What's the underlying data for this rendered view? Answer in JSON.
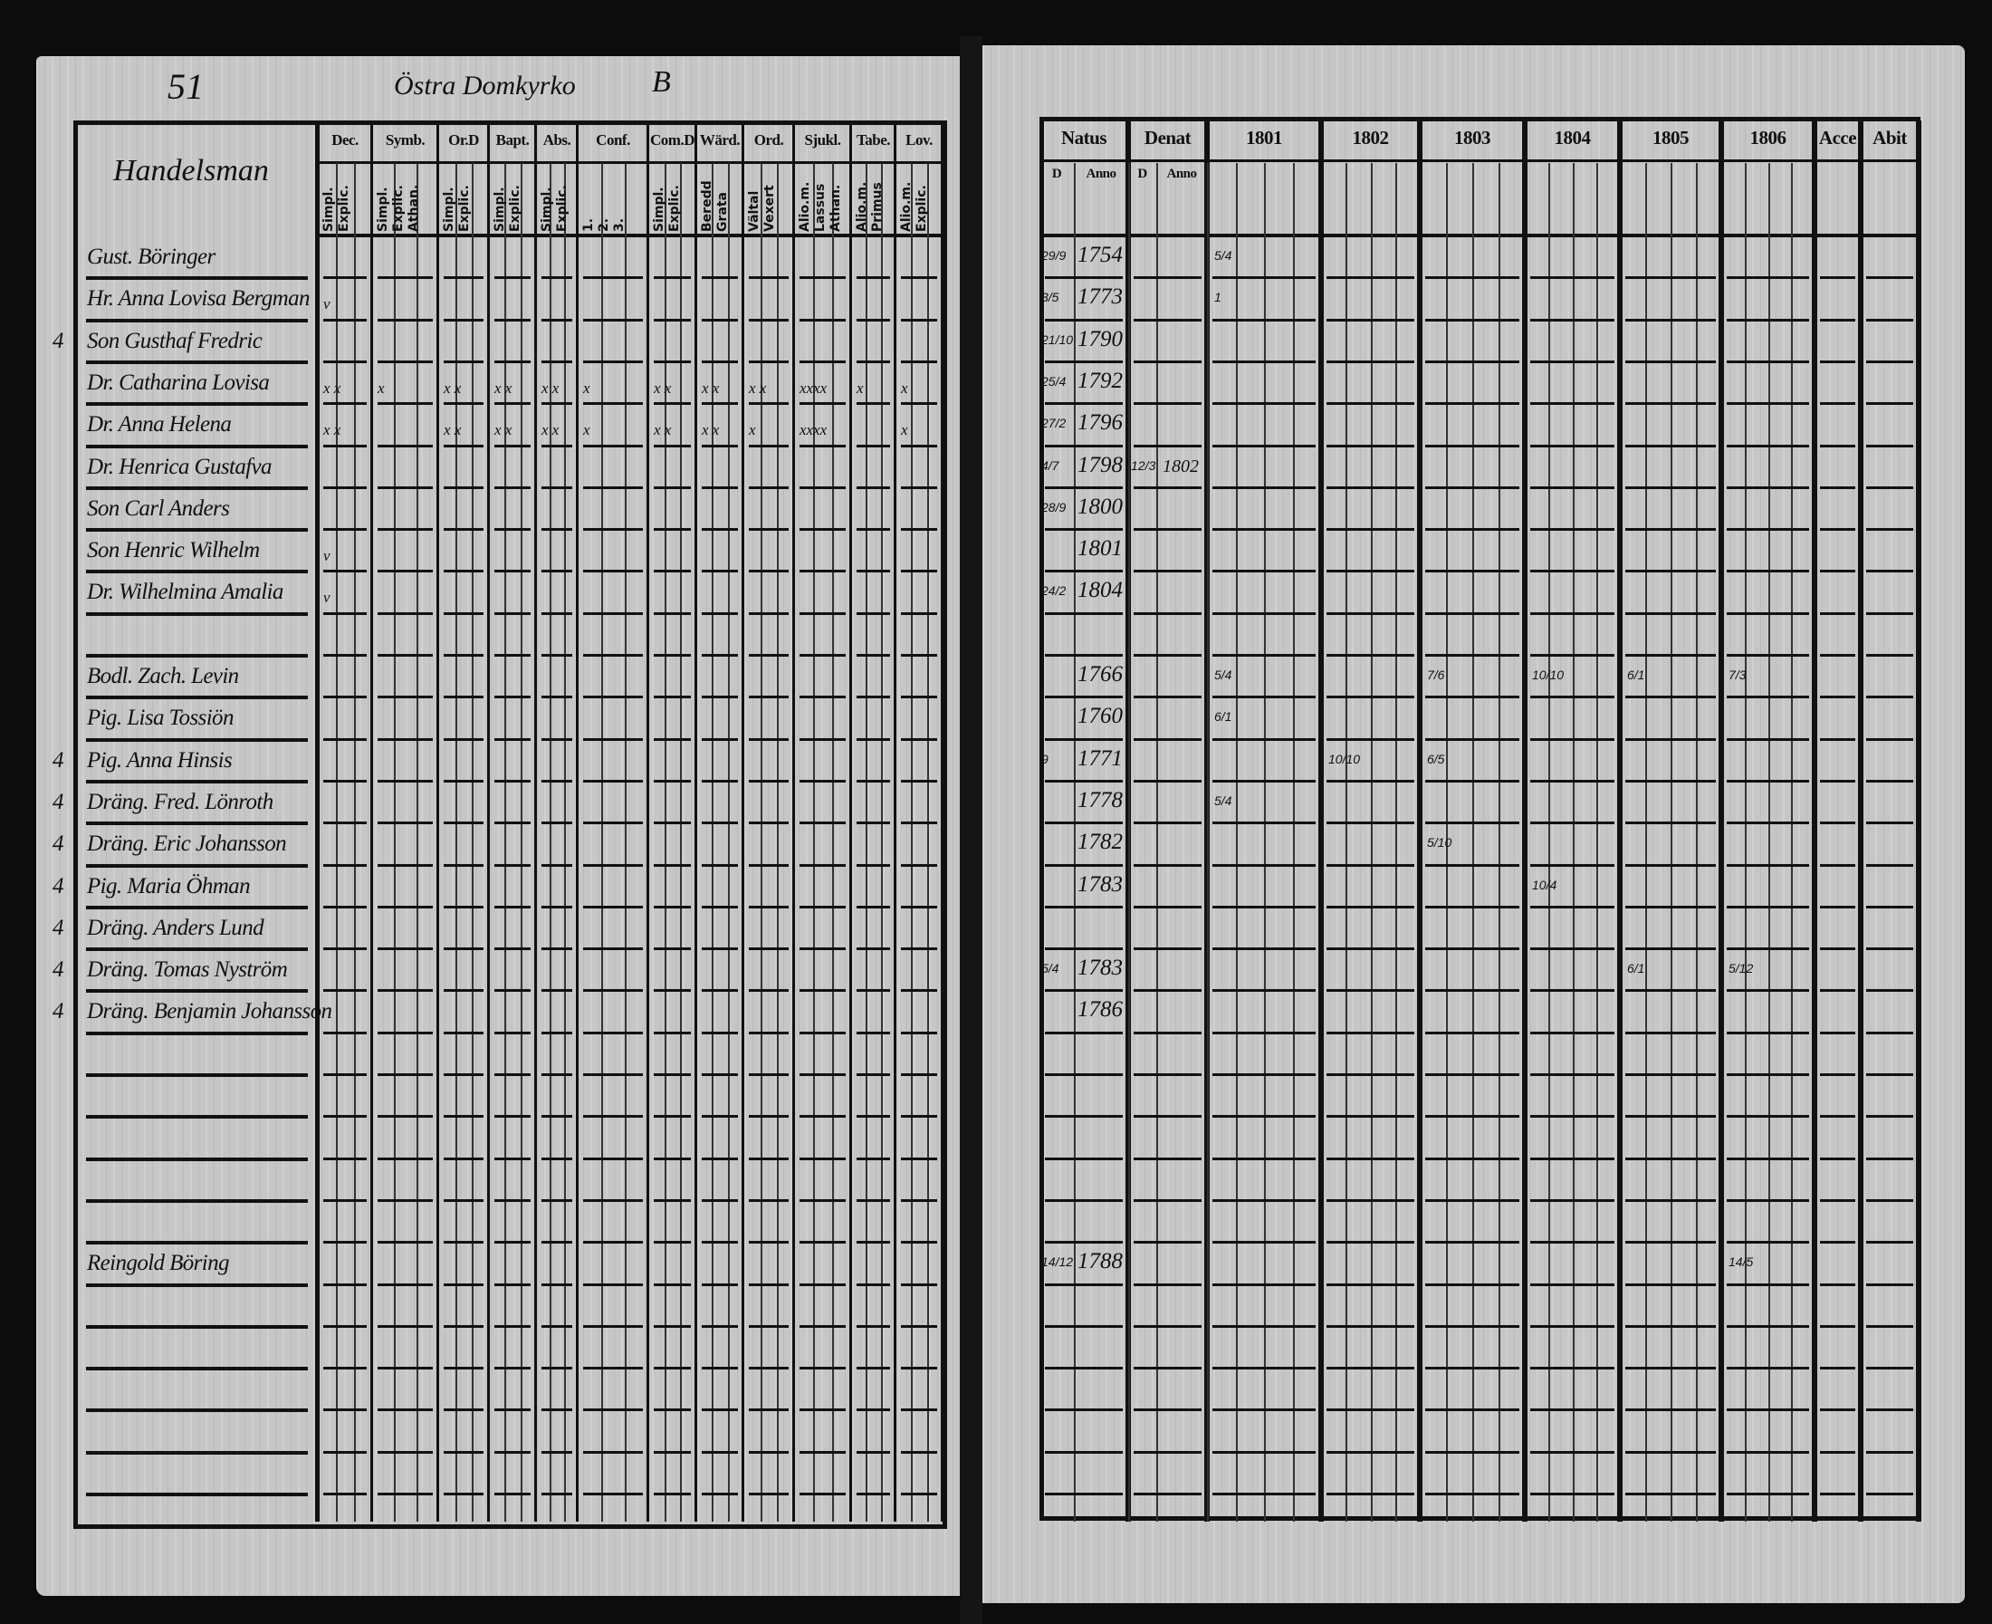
{
  "header": {
    "page_number": "51",
    "parish": "Östra Domkyrko",
    "quarter_mark": "B"
  },
  "left_table": {
    "name_header": "Handelsman",
    "columns": [
      {
        "top": "Dec.",
        "sub": "Simpl.\nExplic."
      },
      {
        "top": "Symb.",
        "sub": "Simpl.\nExplic.\nAthan."
      },
      {
        "top": "Or.D",
        "sub": "Simpl.\nExplic."
      },
      {
        "top": "Bapt.",
        "sub": "Simpl.\nExplic."
      },
      {
        "top": "Abs.",
        "sub": "Simpl.\nExplic."
      },
      {
        "top": "Conf.",
        "sub": "1.\n2.\n3."
      },
      {
        "top": "Com.D",
        "sub": "Simpl.\nExplic."
      },
      {
        "top": "Wärd.",
        "sub": "Beredd\nGrata"
      },
      {
        "top": "Ord.",
        "sub": "Vältal\nVexert"
      },
      {
        "top": "Sjukl.",
        "sub": "Alio.m.\nLassus\nAthan."
      },
      {
        "top": "Tabe.",
        "sub": "Alio.m.\nPrimus"
      },
      {
        "top": "Lov.",
        "sub": "Alio.m.\nExplic."
      }
    ],
    "rows": [
      {
        "row": 0,
        "name": "Gust. Böringer",
        "margin": "",
        "marks": []
      },
      {
        "row": 1,
        "name": "Hr. Anna Lovisa Bergman",
        "margin": "",
        "marks": [
          "v"
        ]
      },
      {
        "row": 2,
        "name": "Son Gusthaf Fredric",
        "margin": "4",
        "marks": []
      },
      {
        "row": 3,
        "name": "Dr. Catharina Lovisa",
        "margin": "",
        "marks": [
          "x x",
          "x",
          "x x",
          "x x",
          "x x",
          "x",
          "x x",
          "x x",
          "x x",
          "xxxx",
          "x",
          "x"
        ]
      },
      {
        "row": 4,
        "name": "Dr. Anna Helena",
        "margin": "",
        "marks": [
          "x x",
          "",
          "x x",
          "x x",
          "x x",
          "x",
          "x x",
          "x x",
          "x",
          "xxxx",
          "",
          "x"
        ]
      },
      {
        "row": 5,
        "name": "Dr. Henrica Gustafva",
        "margin": "",
        "marks": []
      },
      {
        "row": 6,
        "name": "Son Carl Anders",
        "margin": "",
        "marks": []
      },
      {
        "row": 7,
        "name": "Son Henric Wilhelm",
        "margin": "",
        "marks": [
          "v"
        ]
      },
      {
        "row": 8,
        "name": "Dr. Wilhelmina Amalia",
        "margin": "",
        "marks": [
          "v"
        ]
      },
      {
        "row": 10,
        "name": "Bodl. Zach. Levin",
        "margin": "",
        "marks": []
      },
      {
        "row": 11,
        "name": "Pig. Lisa Tossiön",
        "margin": "",
        "marks": []
      },
      {
        "row": 12,
        "name": "Pig. Anna Hinsis",
        "margin": "4",
        "marks": []
      },
      {
        "row": 13,
        "name": "Dräng. Fred. Lönroth",
        "margin": "4",
        "marks": []
      },
      {
        "row": 14,
        "name": "Dräng. Eric Johansson",
        "margin": "4",
        "marks": []
      },
      {
        "row": 15,
        "name": "Pig. Maria Öhman",
        "margin": "4",
        "marks": []
      },
      {
        "row": 16,
        "name": "Dräng. Anders Lund",
        "margin": "4",
        "marks": []
      },
      {
        "row": 17,
        "name": "Dräng. Tomas Nyström",
        "margin": "4",
        "marks": []
      },
      {
        "row": 18,
        "name": "Dräng. Benjamin Johansson",
        "margin": "4",
        "marks": []
      },
      {
        "row": 24,
        "name": "Reingold Böring",
        "margin": "",
        "marks": []
      }
    ]
  },
  "right_table": {
    "group_headers": [
      "Natus",
      "Denat",
      "1801",
      "1802",
      "1803",
      "1804",
      "1805",
      "1806",
      "Acce",
      "Abit"
    ],
    "sub_headers": {
      "natus_day": "D",
      "natus_year": "Anno",
      "denat_day": "D",
      "denat_year": "Anno"
    },
    "rows": [
      {
        "row": 0,
        "born_day": "29/9",
        "born_year": "1754",
        "death_day": "",
        "death_year": "",
        "notes": {
          "1801": "5/4"
        }
      },
      {
        "row": 1,
        "born_day": "3/5",
        "born_year": "1773",
        "death_day": "",
        "death_year": "",
        "notes": {
          "1801": "1"
        }
      },
      {
        "row": 2,
        "born_day": "21/10",
        "born_year": "1790",
        "death_day": "",
        "death_year": "",
        "notes": {}
      },
      {
        "row": 3,
        "born_day": "25/4",
        "born_year": "1792",
        "death_day": "",
        "death_year": "",
        "notes": {}
      },
      {
        "row": 4,
        "born_day": "27/2",
        "born_year": "1796",
        "death_day": "",
        "death_year": "",
        "notes": {}
      },
      {
        "row": 5,
        "born_day": "4/7",
        "born_year": "1798",
        "death_day": "12/3",
        "death_year": "1802",
        "notes": {}
      },
      {
        "row": 6,
        "born_day": "28/9",
        "born_year": "1800",
        "death_day": "",
        "death_year": "",
        "notes": {}
      },
      {
        "row": 7,
        "born_day": "",
        "born_year": "1801",
        "death_day": "",
        "death_year": "",
        "notes": {}
      },
      {
        "row": 8,
        "born_day": "24/2",
        "born_year": "1804",
        "death_day": "",
        "death_year": "",
        "notes": {}
      },
      {
        "row": 10,
        "born_day": "",
        "born_year": "1766",
        "death_day": "",
        "death_year": "",
        "notes": {
          "1801": "5/4",
          "1803": "7/6",
          "1804": "10/10",
          "1805": "6/1",
          "1806": "7/3"
        }
      },
      {
        "row": 11,
        "born_day": "",
        "born_year": "1760",
        "death_day": "",
        "death_year": "",
        "notes": {
          "1801": "6/1"
        }
      },
      {
        "row": 12,
        "born_day": "9",
        "born_year": "1771",
        "death_day": "",
        "death_year": "",
        "notes": {
          "1802": "10/10",
          "1803": "6/5"
        }
      },
      {
        "row": 13,
        "born_day": "",
        "born_year": "1778",
        "death_day": "",
        "death_year": "",
        "notes": {
          "1801": "5/4"
        }
      },
      {
        "row": 14,
        "born_day": "",
        "born_year": "1782",
        "death_day": "",
        "death_year": "",
        "notes": {
          "1803": "5/10"
        }
      },
      {
        "row": 15,
        "born_day": "",
        "born_year": "1783",
        "death_day": "",
        "death_year": "",
        "notes": {
          "1804": "10/4"
        }
      },
      {
        "row": 17,
        "born_day": "5/4",
        "born_year": "1783",
        "death_day": "",
        "death_year": "",
        "notes": {
          "1805": "6/1",
          "1806": "5/12"
        }
      },
      {
        "row": 18,
        "born_day": "",
        "born_year": "1786",
        "death_day": "",
        "death_year": "",
        "notes": {}
      },
      {
        "row": 24,
        "born_day": "14/12",
        "born_year": "1788",
        "death_day": "",
        "death_year": "",
        "notes": {
          "1806": "14/5"
        }
      }
    ]
  },
  "colors": {
    "paper": "#c6c6c6",
    "ink": "#111111",
    "background": "#0c0c0c"
  }
}
